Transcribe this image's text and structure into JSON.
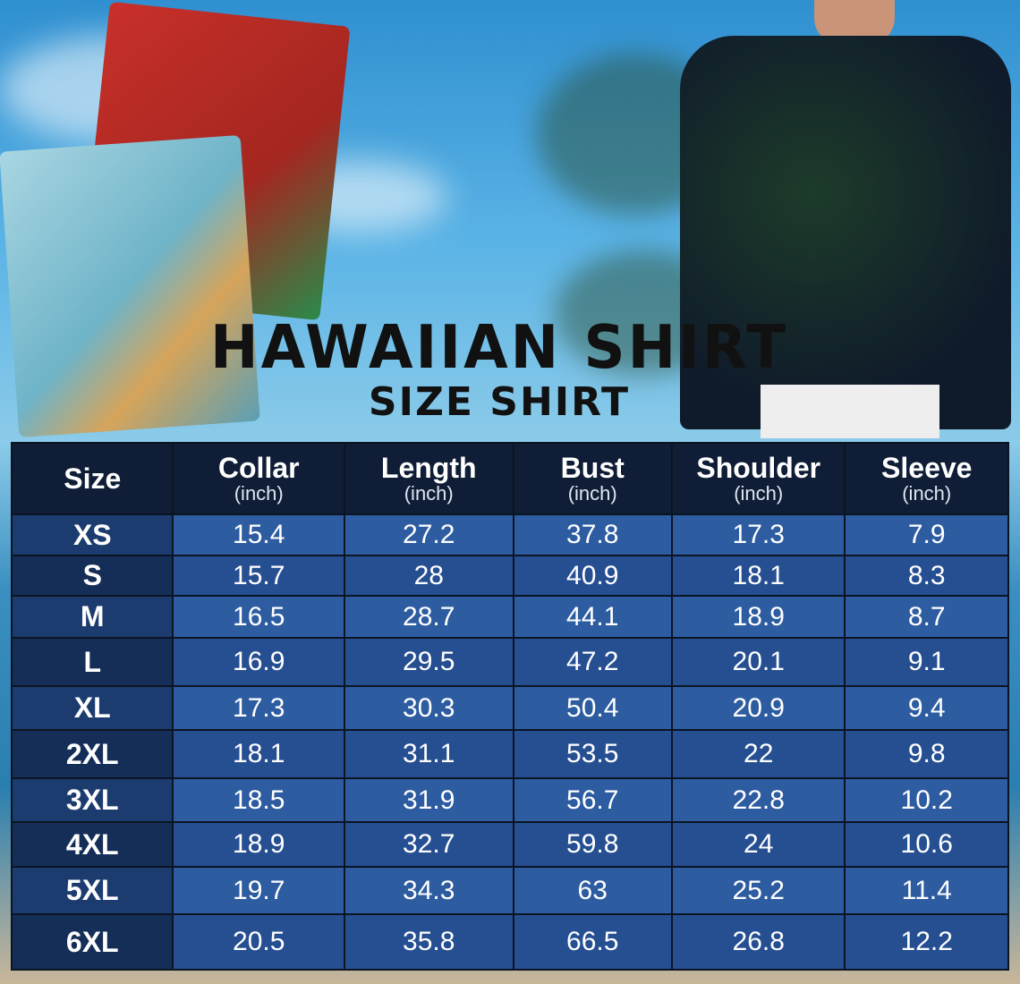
{
  "title": "HAWAIIAN SHIRT",
  "subtitle": "SIZE SHIRT",
  "table": {
    "headers": [
      {
        "label": "Size",
        "unit": ""
      },
      {
        "label": "Collar",
        "unit": "(inch)"
      },
      {
        "label": "Length",
        "unit": "(inch)"
      },
      {
        "label": "Bust",
        "unit": "(inch)"
      },
      {
        "label": "Shoulder",
        "unit": "(inch)"
      },
      {
        "label": "Sleeve",
        "unit": "(inch)"
      }
    ],
    "rows": [
      [
        "XS",
        "15.4",
        "27.2",
        "37.8",
        "17.3",
        "7.9"
      ],
      [
        "S",
        "15.7",
        "28",
        "40.9",
        "18.1",
        "8.3"
      ],
      [
        "M",
        "16.5",
        "28.7",
        "44.1",
        "18.9",
        "8.7"
      ],
      [
        "L",
        "16.9",
        "29.5",
        "47.2",
        "20.1",
        "9.1"
      ],
      [
        "XL",
        "17.3",
        "30.3",
        "50.4",
        "20.9",
        "9.4"
      ],
      [
        "2XL",
        "18.1",
        "31.1",
        "53.5",
        "22",
        "9.8"
      ],
      [
        "3XL",
        "18.5",
        "31.9",
        "56.7",
        "22.8",
        "10.2"
      ],
      [
        "4XL",
        "18.9",
        "32.7",
        "59.8",
        "24",
        "10.6"
      ],
      [
        "5XL",
        "19.7",
        "34.3",
        "63",
        "25.2",
        "11.4"
      ],
      [
        "6XL",
        "20.5",
        "35.8",
        "66.5",
        "26.8",
        "12.2"
      ]
    ]
  },
  "colors": {
    "header_bg": "#0f1d36",
    "cell_bg": "#2d5ca1",
    "size_bg": "#1c3c70"
  }
}
